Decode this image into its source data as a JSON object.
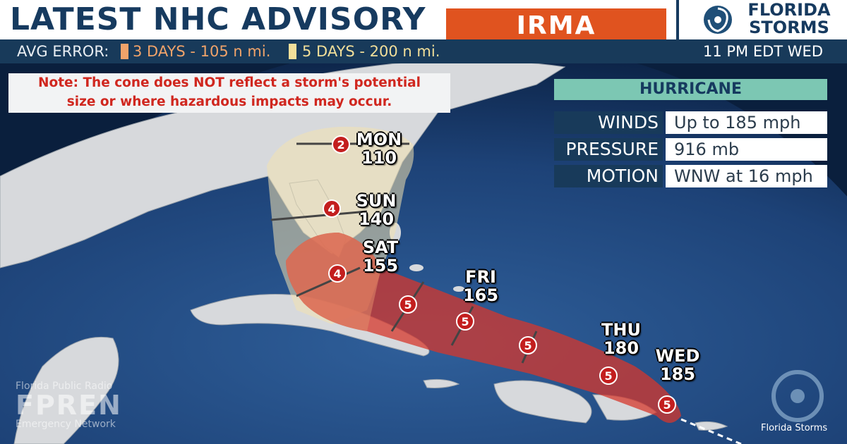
{
  "header": {
    "title": "LATEST NHC ADVISORY",
    "storm_name": "IRMA",
    "brand_line1": "FLORIDA",
    "brand_line2": "STORMS"
  },
  "subbar": {
    "avg_error_label": "AVG ERROR:",
    "error_3day": "3 DAYS - 105 n mi.",
    "error_5day": "5 DAYS - 200 n mi.",
    "advisory_time": "11 PM EDT WED"
  },
  "note": {
    "line1": "Note: The cone does NOT reflect a storm's potential",
    "line2": "size or where hazardous impacts may occur."
  },
  "info_panel": {
    "heading": "HURRICANE",
    "rows": [
      {
        "label": "WINDS",
        "value": "Up to 185 mph"
      },
      {
        "label": "PRESSURE",
        "value": "916 mb"
      },
      {
        "label": "MOTION",
        "value": "WNW at 16 mph"
      }
    ]
  },
  "forecast_points": [
    {
      "day": "MON",
      "wind": "110",
      "category": "2"
    },
    {
      "day": "SUN",
      "wind": "140",
      "category": "4"
    },
    {
      "day": "SAT",
      "wind": "155",
      "category": "4"
    },
    {
      "day": "",
      "wind": "",
      "category": "5"
    },
    {
      "day": "FRI",
      "wind": "165",
      "category": "5"
    },
    {
      "day": "",
      "wind": "",
      "category": "5"
    },
    {
      "day": "THU",
      "wind": "180",
      "category": "5"
    },
    {
      "day": "WED",
      "wind": "185",
      "category": "5"
    }
  ],
  "watermark": {
    "line1": "Florida Public Radio",
    "line2": "FPREN",
    "line3": "Emergency Network"
  },
  "footer_logo": "Florida Storms",
  "colors": {
    "title": "#163a5f",
    "storm_box": "#e0531f",
    "bar": "#183a5a",
    "cone_3day": "#e08a6a",
    "cone_5day": "#f2e2b0",
    "track_red": "#d6372c",
    "panel_head": "#7cc7b3",
    "note_text": "#d0271f"
  }
}
